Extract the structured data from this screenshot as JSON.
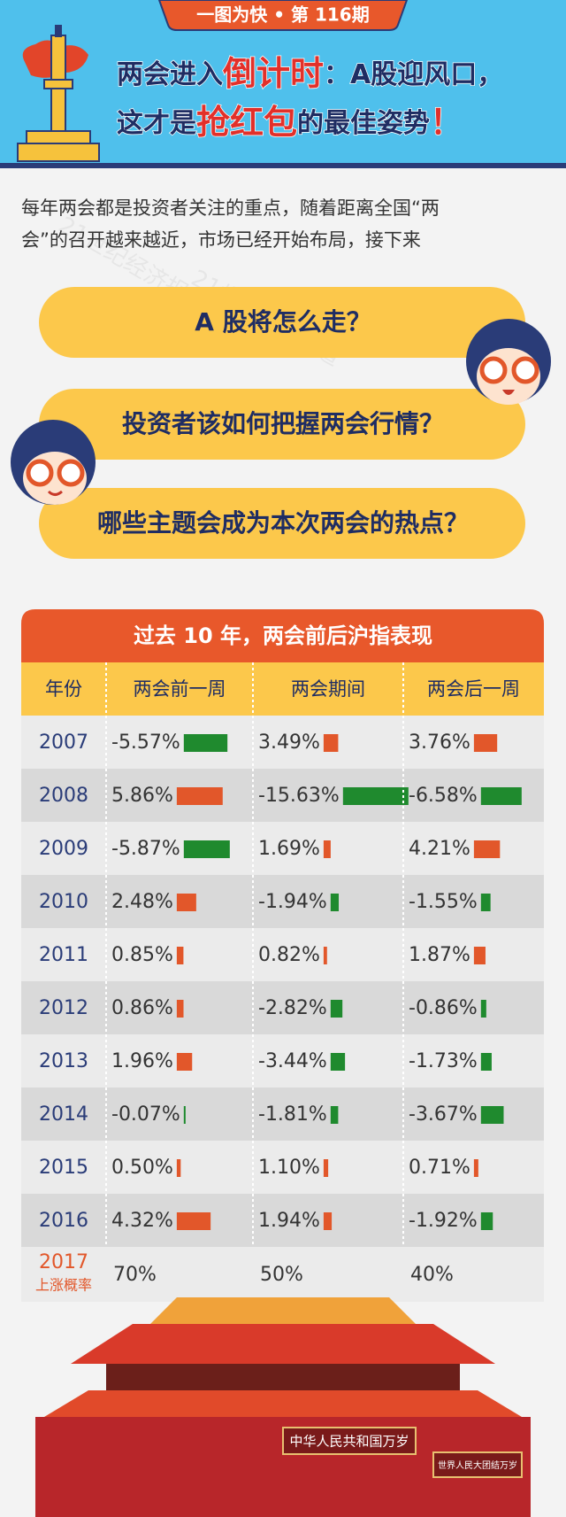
{
  "header": {
    "tab": "一图为快 • 第 116期",
    "title_line1": [
      {
        "text": "两会进入",
        "highlight": false
      },
      {
        "text": "倒计时",
        "highlight": true
      },
      {
        "text": "：A股迎风口，",
        "highlight": false
      }
    ],
    "title_line2": [
      {
        "text": "这才是",
        "highlight": false
      },
      {
        "text": "抢红包",
        "highlight": true
      },
      {
        "text": "的最佳姿势",
        "highlight": false
      },
      {
        "text": "！",
        "highlight": true
      }
    ]
  },
  "intro": [
    "每年两会都是投资者关注的重点，随着距离全国“两",
    "会”的召开越来越近，市场已经开始布局，接下来"
  ],
  "questions": [
    "A 股将怎么走？",
    "投资者该如何把握两会行情？",
    "哪些主题会成为本次两会的热点？"
  ],
  "table": {
    "title": "过去 10 年，两会前后沪指表现",
    "columns": [
      "年份",
      "两会前一周",
      "两会期间",
      "两会后一周"
    ],
    "years": [
      "2007",
      "2008",
      "2009",
      "2010",
      "2011",
      "2012",
      "2013",
      "2014",
      "2015",
      "2016"
    ],
    "up_color": "#e2572a",
    "down_color": "#1f8a2e",
    "series": [
      {
        "values": [
          -5.57,
          5.86,
          -5.87,
          2.48,
          0.85,
          0.86,
          1.96,
          -0.07,
          0.5,
          4.32
        ],
        "value_labels": [
          "-5.57%",
          "5.86%",
          "-5.87%",
          "2.48%",
          "0.85%",
          "0.86%",
          "1.96%",
          "-0.07%",
          "0.50%",
          "4.32%"
        ]
      },
      {
        "values": [
          3.49,
          -15.63,
          1.69,
          -1.94,
          0.82,
          -2.82,
          -3.44,
          -1.81,
          1.1,
          1.94
        ],
        "value_labels": [
          "3.49%",
          "-15.63%",
          "1.69%",
          "-1.94%",
          "0.82%",
          "-2.82%",
          "-3.44%",
          "-1.81%",
          "1.10%",
          "1.94%"
        ]
      },
      {
        "values": [
          3.76,
          -6.58,
          4.21,
          -1.55,
          1.87,
          -0.86,
          -1.73,
          -3.67,
          0.71,
          -1.92
        ],
        "value_labels": [
          "3.76%",
          "-6.58%",
          "4.21%",
          "-1.55%",
          "1.87%",
          "-0.86%",
          "-1.73%",
          "-3.67%",
          "0.71%",
          "-1.92%"
        ]
      }
    ],
    "forecast": {
      "year": "2017",
      "label": "上涨概率",
      "probabilities": [
        "70%",
        "50%",
        "40%"
      ]
    }
  },
  "banners": [
    "中华人民共和国万岁",
    "世界人民大团结万岁"
  ],
  "watermark": "21世纪经济报道"
}
